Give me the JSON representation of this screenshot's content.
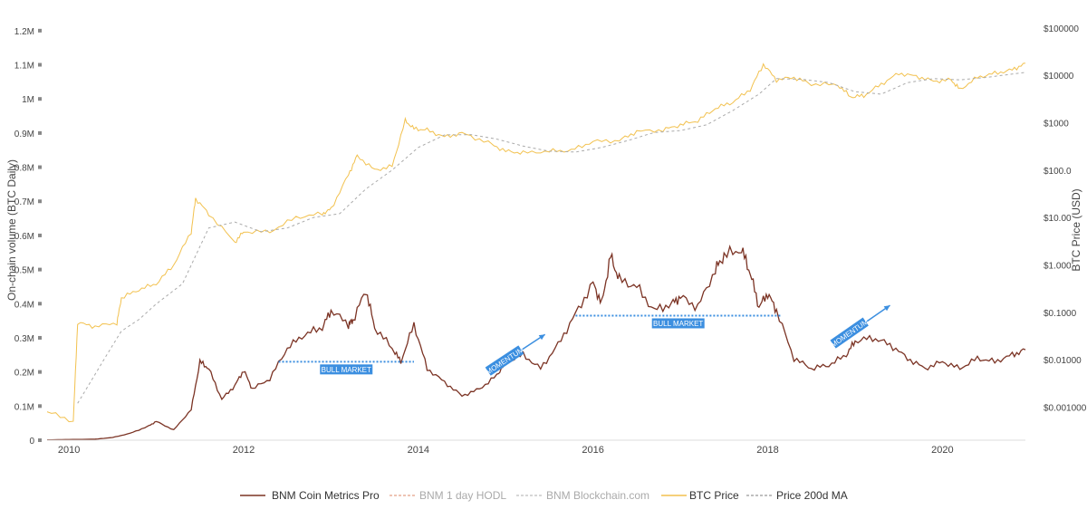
{
  "chart_data": {
    "type": "line",
    "x_range": [
      2009.75,
      2020.95
    ],
    "x_ticks": [
      "2010",
      "2012",
      "2014",
      "2016",
      "2018",
      "2020"
    ],
    "y_left": {
      "label": "On-chain volume (BTC Daily)",
      "range": [
        0,
        1250000
      ],
      "ticks": [
        "0",
        "0.1M",
        "0.2M",
        "0.3M",
        "0.4M",
        "0.5M",
        "0.6M",
        "0.7M",
        "0.8M",
        "0.9M",
        "1M",
        "1.1M",
        "1.2M"
      ]
    },
    "y_right": {
      "label": "BTC Price (USD)",
      "scale": "log",
      "range": [
        0.0002,
        200000
      ],
      "ticks": [
        "$0.001000",
        "$0.01000",
        "$0.1000",
        "$1.000",
        "$10.00",
        "$100.0",
        "$1000",
        "$10000",
        "$100000"
      ]
    },
    "grid": false,
    "legend_position": "bottom",
    "series": [
      {
        "name": "BNM Coin Metrics Pro",
        "axis": "left",
        "color": "#7b3324",
        "x": [
          2009.75,
          2010.0,
          2010.3,
          2010.5,
          2010.7,
          2010.9,
          2011.0,
          2011.2,
          2011.4,
          2011.5,
          2011.6,
          2011.75,
          2011.9,
          2012.0,
          2012.1,
          2012.3,
          2012.5,
          2012.7,
          2012.9,
          2013.0,
          2013.2,
          2013.25,
          2013.4,
          2013.5,
          2013.7,
          2013.8,
          2013.95,
          2014.1,
          2014.3,
          2014.5,
          2014.7,
          2014.9,
          2015.0,
          2015.2,
          2015.4,
          2015.6,
          2015.8,
          2016.0,
          2016.1,
          2016.2,
          2016.3,
          2016.5,
          2016.7,
          2016.9,
          2017.0,
          2017.2,
          2017.4,
          2017.5,
          2017.7,
          2017.8,
          2017.9,
          2018.0,
          2018.1,
          2018.3,
          2018.5,
          2018.7,
          2018.9,
          2019.0,
          2019.2,
          2019.4,
          2019.6,
          2019.8,
          2020.0,
          2020.2,
          2020.4,
          2020.6,
          2020.8,
          2020.95
        ],
        "y": [
          1000,
          2000,
          3000,
          8000,
          20000,
          40000,
          55000,
          30000,
          90000,
          230000,
          210000,
          120000,
          160000,
          205000,
          150000,
          180000,
          270000,
          310000,
          330000,
          380000,
          340000,
          350000,
          440000,
          330000,
          270000,
          230000,
          340000,
          210000,
          170000,
          130000,
          150000,
          190000,
          230000,
          250000,
          210000,
          280000,
          370000,
          460000,
          400000,
          540000,
          470000,
          450000,
          380000,
          400000,
          420000,
          390000,
          500000,
          540000,
          560000,
          490000,
          390000,
          430000,
          380000,
          240000,
          210000,
          220000,
          250000,
          290000,
          300000,
          280000,
          240000,
          210000,
          230000,
          210000,
          240000,
          230000,
          250000,
          265000
        ]
      },
      {
        "name": "BNM 1 day HODL",
        "axis": "left",
        "color": "#e8b19c",
        "hidden": true
      },
      {
        "name": "BNM Blockchain.com",
        "axis": "left",
        "color": "#c8c8c8",
        "hidden": true
      },
      {
        "name": "BTC Price",
        "axis": "right",
        "color": "#f2c14e",
        "x": [
          2009.75,
          2010.05,
          2010.1,
          2010.3,
          2010.55,
          2010.6,
          2010.8,
          2011.0,
          2011.2,
          2011.4,
          2011.45,
          2011.6,
          2011.9,
          2012.0,
          2012.3,
          2012.6,
          2012.9,
          2013.0,
          2013.2,
          2013.3,
          2013.5,
          2013.7,
          2013.85,
          2013.95,
          2014.1,
          2014.3,
          2014.5,
          2014.8,
          2015.0,
          2015.2,
          2015.5,
          2015.75,
          2016.0,
          2016.3,
          2016.5,
          2016.8,
          2017.0,
          2017.2,
          2017.4,
          2017.6,
          2017.8,
          2017.95,
          2018.1,
          2018.3,
          2018.5,
          2018.8,
          2018.95,
          2019.1,
          2019.3,
          2019.5,
          2019.7,
          2019.9,
          2020.1,
          2020.2,
          2020.4,
          2020.6,
          2020.8,
          2020.95
        ],
        "y": [
          0.0008,
          0.0005,
          0.06,
          0.05,
          0.06,
          0.2,
          0.3,
          0.4,
          1,
          5,
          25,
          12,
          3,
          5,
          5,
          10,
          12,
          15,
          80,
          200,
          100,
          120,
          1100,
          750,
          700,
          500,
          600,
          380,
          250,
          230,
          250,
          260,
          400,
          420,
          650,
          700,
          900,
          1100,
          2000,
          2700,
          5000,
          17000,
          8000,
          9000,
          6500,
          6300,
          3500,
          3700,
          6500,
          11000,
          9500,
          7500,
          8000,
          5000,
          9000,
          11000,
          13000,
          18000
        ]
      },
      {
        "name": "Price 200d MA",
        "axis": "right",
        "color": "#aaaaaa",
        "x": [
          2010.1,
          2010.4,
          2010.6,
          2010.8,
          2011.0,
          2011.3,
          2011.6,
          2011.9,
          2012.2,
          2012.5,
          2012.8,
          2013.1,
          2013.4,
          2013.7,
          2014.0,
          2014.3,
          2014.6,
          2014.9,
          2015.2,
          2015.5,
          2015.8,
          2016.1,
          2016.4,
          2016.7,
          2017.0,
          2017.3,
          2017.6,
          2017.9,
          2018.1,
          2018.4,
          2018.7,
          2019.0,
          2019.3,
          2019.6,
          2019.9,
          2020.2,
          2020.5,
          2020.95
        ],
        "y": [
          0.0012,
          0.01,
          0.04,
          0.07,
          0.15,
          0.4,
          6,
          8,
          5,
          6,
          10,
          12,
          40,
          100,
          300,
          550,
          560,
          450,
          320,
          250,
          240,
          300,
          420,
          620,
          680,
          900,
          1800,
          4000,
          8500,
          8200,
          7000,
          4500,
          4000,
          7000,
          8500,
          8000,
          9000,
          11500
        ]
      }
    ],
    "annotations": [
      {
        "text": "BULL MARKET",
        "type": "level",
        "x_start": 2012.4,
        "x_end": 2013.95,
        "y": 230000
      },
      {
        "text": "BULL MARKET",
        "type": "level",
        "x_start": 2015.8,
        "x_end": 2018.15,
        "y": 365000
      },
      {
        "text": "MOMENTUM",
        "type": "arrow",
        "x_start": 2014.8,
        "x_end": 2015.45,
        "y_start": 200000,
        "y_end": 310000
      },
      {
        "text": "MOMENTUM",
        "type": "arrow",
        "x_start": 2018.75,
        "x_end": 2019.4,
        "y_start": 280000,
        "y_end": 395000
      }
    ]
  },
  "colors": {
    "annotation": "#3c8fe0",
    "axis_tick": "#444444",
    "legend_hidden_text": "#aaaaaa",
    "legend_text": "#333333"
  }
}
